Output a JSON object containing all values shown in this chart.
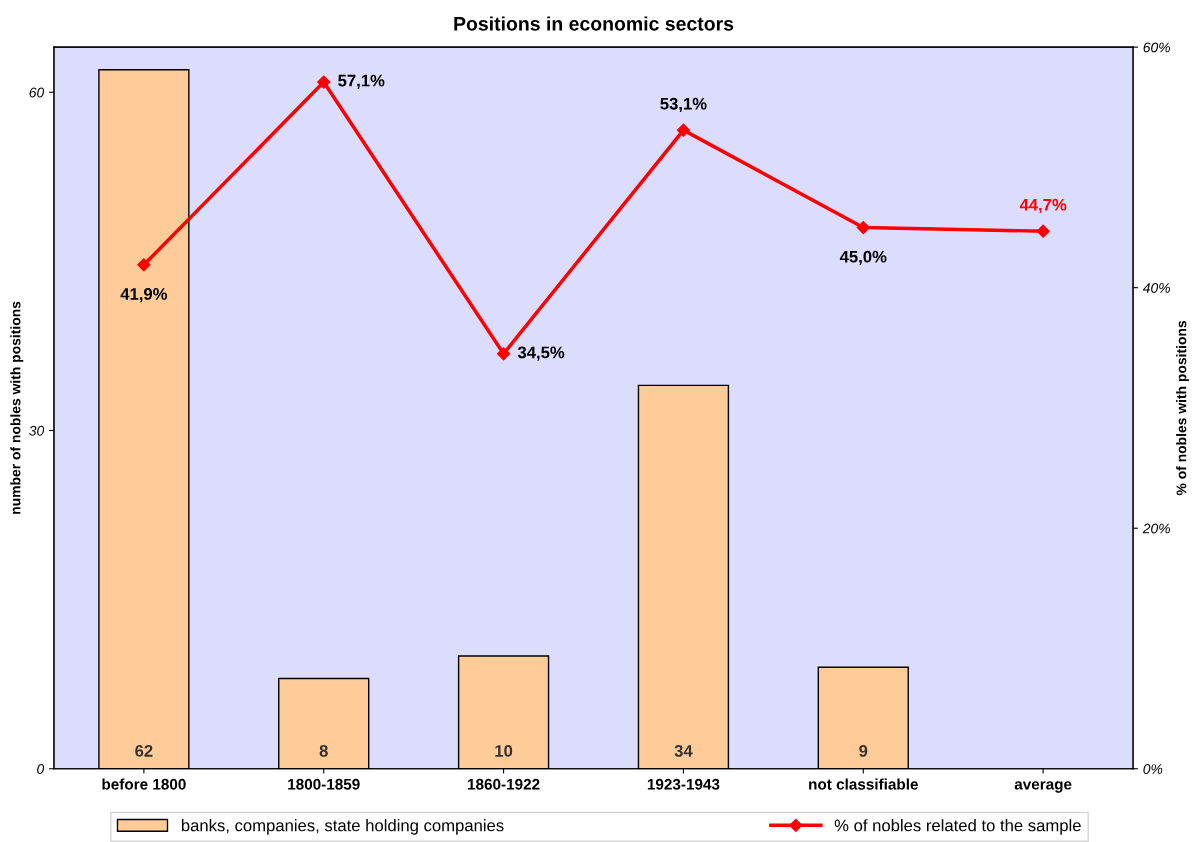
{
  "chart_data": {
    "type": "bar",
    "title": "Positions in economic sectors",
    "categories": [
      "before 1800",
      "1800-1859",
      "1860-1922",
      "1923-1943",
      "not classifiable",
      "average"
    ],
    "ylabel": "number of nobles with positions",
    "y2label": "% of nobles with positions",
    "ylim": [
      0,
      64
    ],
    "yticks": [
      0,
      30,
      60
    ],
    "y2lim": [
      0,
      60
    ],
    "y2ticks": [
      {
        "value": 0,
        "label": "0%"
      },
      {
        "value": 20,
        "label": "20%"
      },
      {
        "value": 40,
        "label": "40%"
      },
      {
        "value": 60,
        "label": "60%"
      }
    ],
    "series": [
      {
        "name": "banks, companies, state holding companies",
        "color": "#ffcc99",
        "values": [
          62,
          8,
          10,
          34,
          9,
          null
        ],
        "value_labels": [
          "62",
          "8",
          "10",
          "34",
          "9",
          null
        ]
      },
      {
        "name": "% of nobles related to the sample",
        "type": "line",
        "axis": "y2",
        "color": "#ff0000",
        "marker": "diamond",
        "values": [
          41.9,
          57.1,
          34.5,
          53.1,
          45.0,
          44.7
        ],
        "value_labels": [
          "41,9%",
          "57,1%",
          "34,5%",
          "53,1%",
          "45,0%",
          "44,7%"
        ]
      }
    ],
    "grid": false,
    "legend": "bottom"
  }
}
